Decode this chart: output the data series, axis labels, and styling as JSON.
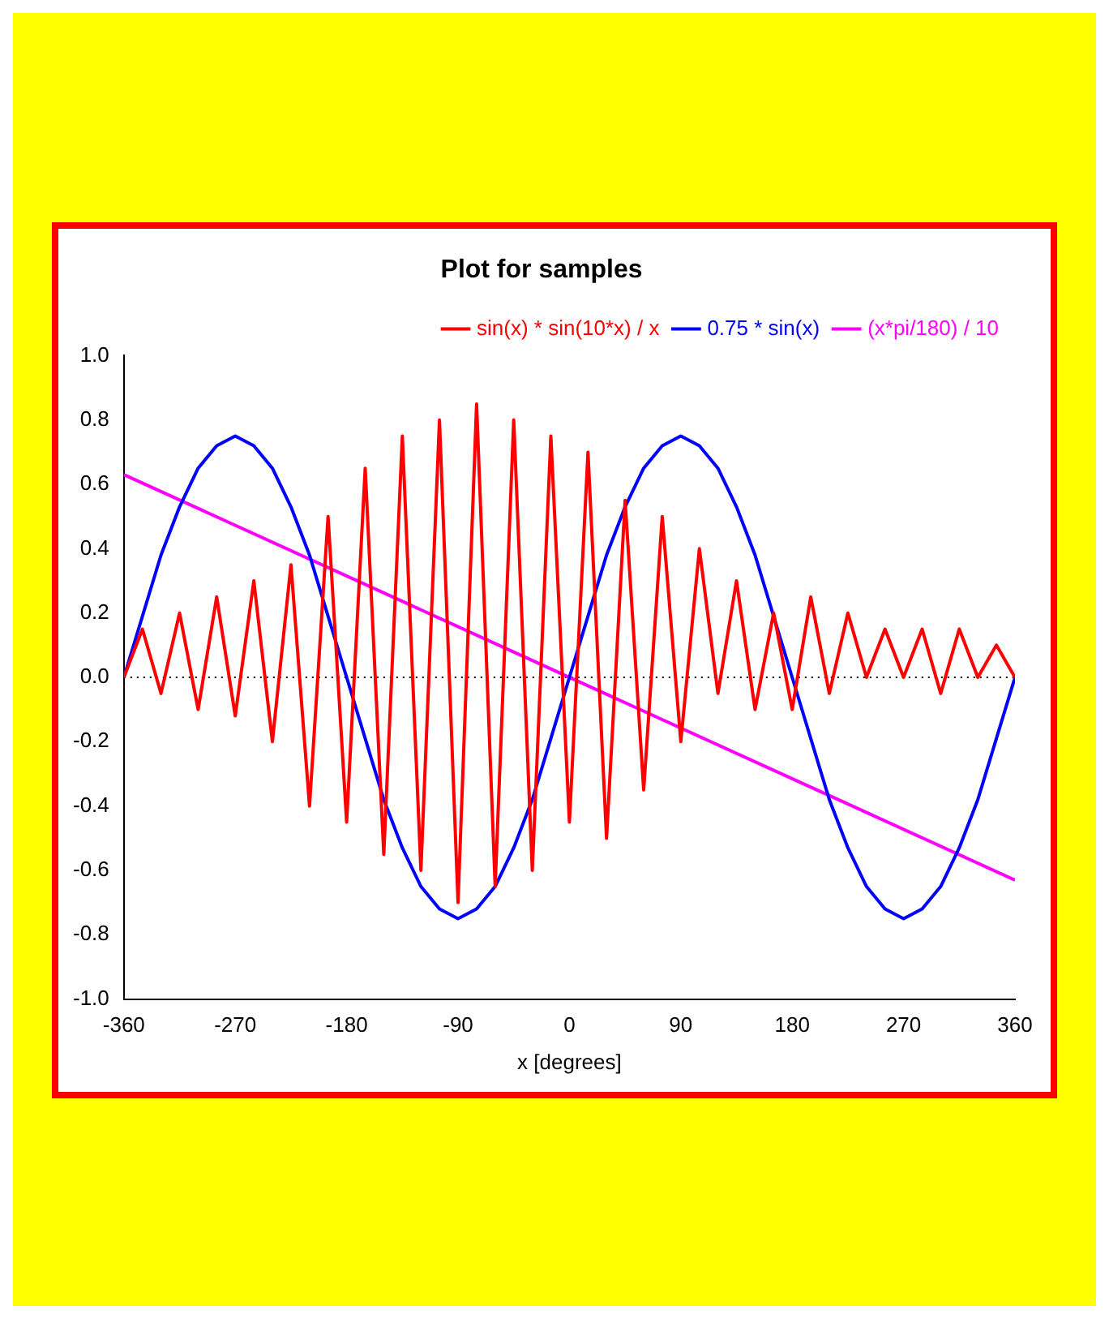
{
  "chart_data": {
    "type": "line",
    "title": "Plot for samples",
    "xlabel": "x [degrees]",
    "x": [
      -360,
      -345,
      -330,
      -315,
      -300,
      -285,
      -270,
      -255,
      -240,
      -225,
      -210,
      -195,
      -180,
      -165,
      -150,
      -135,
      -120,
      -105,
      -90,
      -75,
      -60,
      -45,
      -30,
      -15,
      0,
      15,
      30,
      45,
      60,
      75,
      90,
      105,
      120,
      135,
      150,
      165,
      180,
      195,
      210,
      225,
      240,
      255,
      270,
      285,
      300,
      315,
      330,
      345,
      360
    ],
    "series": [
      {
        "name": "sin(x) * sin(10*x) / x",
        "color": "#ff0000",
        "values": [
          0.0,
          0.15,
          -0.05,
          0.2,
          -0.1,
          0.25,
          -0.12,
          0.3,
          -0.2,
          0.35,
          -0.4,
          0.5,
          -0.45,
          0.65,
          -0.55,
          0.75,
          -0.6,
          0.8,
          -0.7,
          0.85,
          -0.65,
          0.8,
          -0.6,
          0.75,
          -0.45,
          0.7,
          -0.5,
          0.55,
          -0.35,
          0.5,
          -0.2,
          0.4,
          -0.05,
          0.3,
          -0.1,
          0.2,
          -0.1,
          0.25,
          -0.05,
          0.2,
          0.0,
          0.15,
          0.0,
          0.15,
          -0.05,
          0.15,
          0.0,
          0.1,
          0.0
        ]
      },
      {
        "name": "0.75 * sin(x)",
        "color": "#0000ff",
        "values": [
          0.0,
          0.19,
          0.38,
          0.53,
          0.65,
          0.72,
          0.75,
          0.72,
          0.65,
          0.53,
          0.38,
          0.19,
          0.0,
          -0.19,
          -0.38,
          -0.53,
          -0.65,
          -0.72,
          -0.75,
          -0.72,
          -0.65,
          -0.53,
          -0.38,
          -0.19,
          0.0,
          0.19,
          0.38,
          0.53,
          0.65,
          0.72,
          0.75,
          0.72,
          0.65,
          0.53,
          0.38,
          0.19,
          0.0,
          -0.19,
          -0.38,
          -0.53,
          -0.65,
          -0.72,
          -0.75,
          -0.72,
          -0.65,
          -0.53,
          -0.38,
          -0.19,
          0.0
        ]
      },
      {
        "name": "(x*pi/180) / 10",
        "color": "#ff00ff",
        "x": [
          -360,
          360
        ],
        "values": [
          0.63,
          -0.63
        ]
      }
    ],
    "xlim": [
      -360,
      360
    ],
    "xticks": [
      -360,
      -270,
      -180,
      -90,
      0,
      90,
      180,
      270,
      360
    ],
    "ylim": [
      -1,
      1
    ],
    "yticks": [
      {
        "value": -1,
        "label": "-1.0"
      },
      {
        "value": -0.8,
        "label": "-0.8"
      },
      {
        "value": -0.6,
        "label": "-0.6"
      },
      {
        "value": -0.4,
        "label": "-0.4"
      },
      {
        "value": -0.2,
        "label": "-0.2"
      },
      {
        "value": 0,
        "label": "0.0"
      },
      {
        "value": 0.2,
        "label": "0.2"
      },
      {
        "value": 0.4,
        "label": "0.4"
      },
      {
        "value": 0.6,
        "label": "0.6"
      },
      {
        "value": 0.8,
        "label": "0.8"
      },
      {
        "value": 1,
        "label": "1.0"
      }
    ],
    "ref_lines": [
      {
        "axis": "y",
        "value": 0,
        "color": "#000000",
        "line_style": "dotted"
      }
    ],
    "legend": "top right",
    "grid": false,
    "marker": "none",
    "line_style": "solid"
  }
}
